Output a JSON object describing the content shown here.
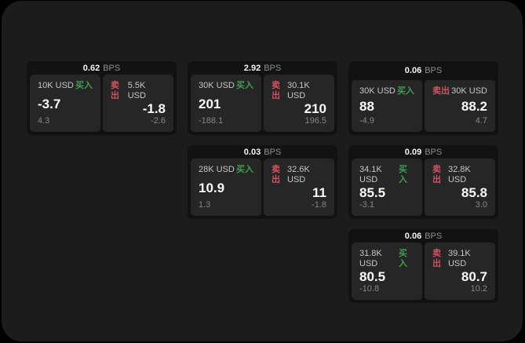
{
  "labels": {
    "bps_unit": "BPS",
    "buy": "买入",
    "sell": "卖出"
  },
  "colors": {
    "page_bg": "#1c1c1d",
    "card_bg": "#121212",
    "panel_bg": "#262626",
    "buy_green": "#3f9e50",
    "sell_red": "#cf5360"
  },
  "cards": [
    {
      "bps": "0.62",
      "buy": {
        "amount": "10K USD",
        "price": "-3.7",
        "delta": "4.3"
      },
      "sell": {
        "amount": "5.5K USD",
        "price": "-1.8",
        "delta": "-2.6"
      }
    },
    {
      "bps": "2.92",
      "buy": {
        "amount": "30K USD",
        "price": "201",
        "delta": "-188.1"
      },
      "sell": {
        "amount": "30.1K USD",
        "price": "210",
        "delta": "196.5"
      }
    },
    {
      "bps": "0.06",
      "buy": {
        "amount": "30K USD",
        "price": "88",
        "delta": "-4.9"
      },
      "sell": {
        "amount": "30K USD",
        "price": "88.2",
        "delta": "4.7"
      }
    },
    {
      "bps": "0.03",
      "buy": {
        "amount": "28K USD",
        "price": "10.9",
        "delta": "1.3"
      },
      "sell": {
        "amount": "32.6K USD",
        "price": "11",
        "delta": "-1.8"
      }
    },
    {
      "bps": "0.09",
      "buy": {
        "amount": "34.1K USD",
        "price": "85.5",
        "delta": "-3.1"
      },
      "sell": {
        "amount": "32.8K USD",
        "price": "85.8",
        "delta": "3.0"
      }
    },
    {
      "bps": "0.06",
      "buy": {
        "amount": "31.8K USD",
        "price": "80.5",
        "delta": "-10.8"
      },
      "sell": {
        "amount": "39.1K USD",
        "price": "80.7",
        "delta": "10.2"
      }
    }
  ]
}
